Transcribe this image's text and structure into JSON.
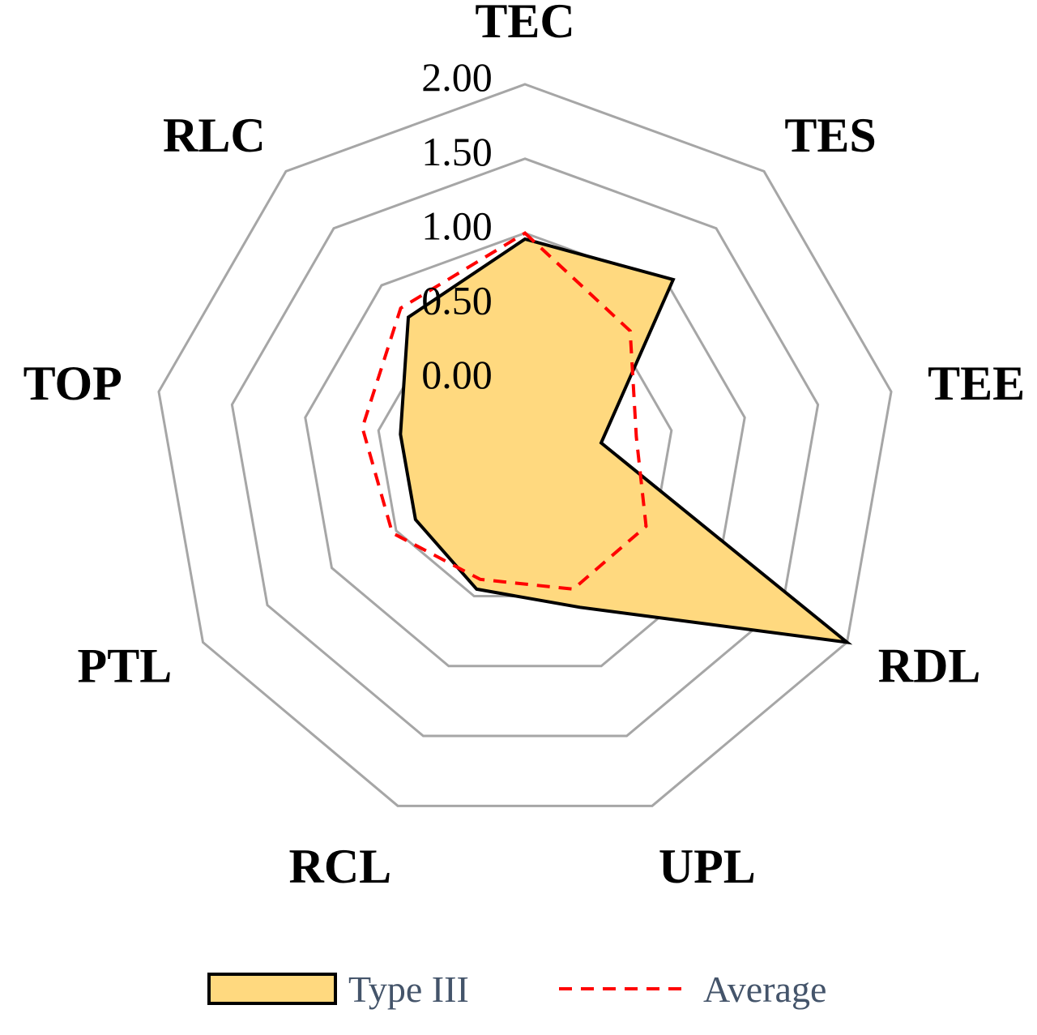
{
  "chart_data": {
    "type": "radar",
    "axes": [
      "TEC",
      "TES",
      "TEE",
      "RDL",
      "UPL",
      "RCL",
      "PTL",
      "TOP",
      "RLC"
    ],
    "ticks": [
      "0.00",
      "0.50",
      "1.00",
      "1.50",
      "2.00"
    ],
    "rlim": [
      -0.5,
      2.0
    ],
    "series": [
      {
        "name": "Type III",
        "values": [
          0.96,
          1.05,
          0.02,
          2.0,
          0.58,
          0.45,
          0.35,
          0.35,
          0.72
        ],
        "fill": "#ffd97f",
        "stroke": "#000000",
        "style": "solid"
      },
      {
        "name": "Average",
        "values": [
          1.0,
          0.6,
          0.26,
          0.44,
          0.45,
          0.38,
          0.53,
          0.61,
          0.8
        ],
        "fill": "none",
        "stroke": "#ff0000",
        "style": "dashed"
      }
    ],
    "grid": true,
    "legend_position": "bottom"
  }
}
